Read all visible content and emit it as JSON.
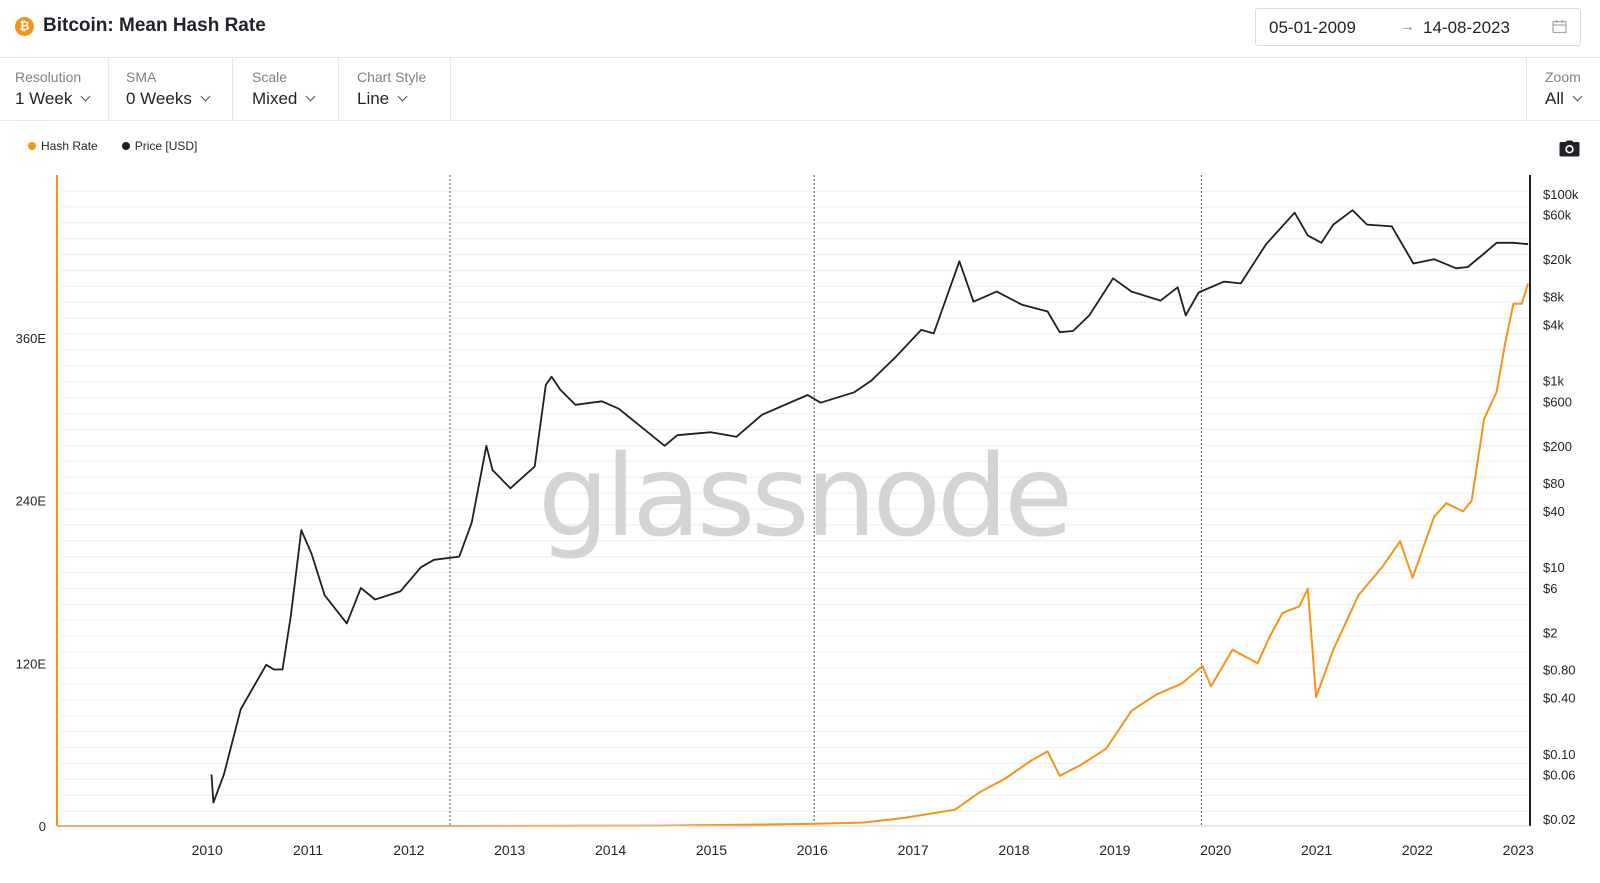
{
  "header": {
    "icon_label": "₿",
    "title": "Bitcoin: Mean Hash Rate",
    "date_start": "05-01-2009",
    "date_arrow": "→",
    "date_end": "14-08-2023"
  },
  "toolbar": {
    "resolution": {
      "label": "Resolution",
      "value": "1 Week"
    },
    "sma": {
      "label": "SMA",
      "value": "0 Weeks"
    },
    "scale": {
      "label": "Scale",
      "value": "Mixed"
    },
    "chart_style": {
      "label": "Chart Style",
      "value": "Line"
    },
    "zoom": {
      "label": "Zoom",
      "value": "All"
    }
  },
  "legend": [
    {
      "name": "Hash Rate",
      "color": "#f7931a"
    },
    {
      "name": "Price [USD]",
      "color": "#1f1f1f"
    }
  ],
  "watermark": "glassnode",
  "chart_data": {
    "type": "line",
    "title": "Bitcoin: Mean Hash Rate",
    "grid": true,
    "legend_position": "top-left",
    "x_ticks": [
      "2010",
      "2011",
      "2012",
      "2013",
      "2014",
      "2015",
      "2016",
      "2017",
      "2018",
      "2019",
      "2020",
      "2021",
      "2022",
      "2023"
    ],
    "xlim": [
      "2009-01-05",
      "2023-08-14"
    ],
    "halvings": [
      "2012-11-28",
      "2016-07-09",
      "2020-05-11"
    ],
    "left_axis": {
      "series": "Hash Rate",
      "ticks": [
        "0",
        "120E",
        "240E",
        "360E"
      ],
      "tick_values": [
        0,
        120,
        240,
        360
      ],
      "ylim": [
        0,
        480
      ],
      "unit": "EH/s"
    },
    "right_axis": {
      "series": "Price [USD]",
      "scale": "log",
      "ticks": [
        "$0.02",
        "$0.06",
        "$0.10",
        "$0.40",
        "$0.80",
        "$2",
        "$6",
        "$10",
        "$40",
        "$80",
        "$200",
        "$600",
        "$1k",
        "$4k",
        "$8k",
        "$20k",
        "$60k",
        "$100k"
      ],
      "tick_values": [
        0.02,
        0.06,
        0.1,
        0.4,
        0.8,
        2,
        6,
        10,
        40,
        80,
        200,
        600,
        1000,
        4000,
        8000,
        20000,
        60000,
        100000
      ]
    },
    "series": [
      {
        "name": "Hash Rate",
        "color": "#f7931a",
        "axis": "left",
        "x": [
          "2009-01-05",
          "2013-01-01",
          "2015-01-01",
          "2016-06-01",
          "2017-01-01",
          "2017-06-01",
          "2017-12-01",
          "2018-03-01",
          "2018-06-01",
          "2018-09-01",
          "2018-11-01",
          "2018-12-15",
          "2019-03-01",
          "2019-06-01",
          "2019-09-01",
          "2019-12-01",
          "2020-03-01",
          "2020-05-15",
          "2020-06-15",
          "2020-09-01",
          "2020-12-01",
          "2021-01-15",
          "2021-03-01",
          "2021-05-01",
          "2021-06-01",
          "2021-07-01",
          "2021-09-01",
          "2021-12-01",
          "2022-03-01",
          "2022-05-01",
          "2022-06-15",
          "2022-09-01",
          "2022-10-15",
          "2022-12-15",
          "2023-01-15",
          "2023-03-01",
          "2023-04-15",
          "2023-05-15",
          "2023-06-15",
          "2023-07-15",
          "2023-08-07"
        ],
        "y": [
          0,
          0.02,
          0.3,
          1.5,
          2.5,
          6,
          12,
          25,
          35,
          48,
          55,
          37,
          45,
          57,
          85,
          97,
          105,
          118,
          103,
          130,
          120,
          140,
          157,
          162,
          175,
          95,
          130,
          170,
          192,
          210,
          183,
          228,
          238,
          232,
          240,
          300,
          320,
          355,
          385,
          385,
          400
        ]
      },
      {
        "name": "Price [USD]",
        "color": "#1f1f1f",
        "axis": "right",
        "x": [
          "2010-07-18",
          "2010-07-25",
          "2010-09-01",
          "2010-11-01",
          "2011-02-01",
          "2011-03-01",
          "2011-04-01",
          "2011-05-01",
          "2011-06-08",
          "2011-07-15",
          "2011-09-01",
          "2011-11-20",
          "2012-01-10",
          "2012-03-01",
          "2012-06-01",
          "2012-08-15",
          "2012-10-01",
          "2013-01-01",
          "2013-02-15",
          "2013-04-09",
          "2013-05-01",
          "2013-07-05",
          "2013-10-01",
          "2013-11-10",
          "2013-12-01",
          "2014-01-01",
          "2014-02-25",
          "2014-06-01",
          "2014-08-01",
          "2015-01-14",
          "2015-03-01",
          "2015-07-01",
          "2015-10-01",
          "2016-01-01",
          "2016-06-15",
          "2016-08-01",
          "2016-12-01",
          "2017-02-01",
          "2017-05-01",
          "2017-08-01",
          "2017-09-15",
          "2017-12-17",
          "2018-02-06",
          "2018-05-01",
          "2018-08-01",
          "2018-11-01",
          "2018-12-15",
          "2019-02-01",
          "2019-04-01",
          "2019-06-26",
          "2019-09-01",
          "2019-12-15",
          "2020-02-15",
          "2020-03-15",
          "2020-05-01",
          "2020-08-01",
          "2020-10-01",
          "2021-01-01",
          "2021-04-14",
          "2021-06-01",
          "2021-07-20",
          "2021-09-01",
          "2021-11-10",
          "2022-01-01",
          "2022-04-01",
          "2022-06-18",
          "2022-09-01",
          "2022-11-20",
          "2023-01-01",
          "2023-03-01",
          "2023-04-15",
          "2023-06-15",
          "2023-08-07"
        ],
        "y": [
          0.06,
          0.03,
          0.06,
          0.3,
          0.9,
          0.8,
          0.8,
          3,
          25,
          14,
          5,
          2.5,
          6,
          4.5,
          5.5,
          10,
          12,
          13,
          30,
          200,
          110,
          70,
          120,
          900,
          1100,
          800,
          550,
          600,
          500,
          200,
          260,
          280,
          250,
          430,
          700,
          580,
          750,
          1000,
          1800,
          3500,
          3200,
          19000,
          7000,
          9000,
          6500,
          5500,
          3300,
          3400,
          5000,
          12500,
          9000,
          7200,
          10000,
          5000,
          8800,
          11500,
          11000,
          29000,
          63000,
          36000,
          30000,
          47000,
          67000,
          47000,
          45000,
          18000,
          20000,
          16000,
          16500,
          23000,
          30000,
          30000,
          29000
        ]
      }
    ]
  }
}
